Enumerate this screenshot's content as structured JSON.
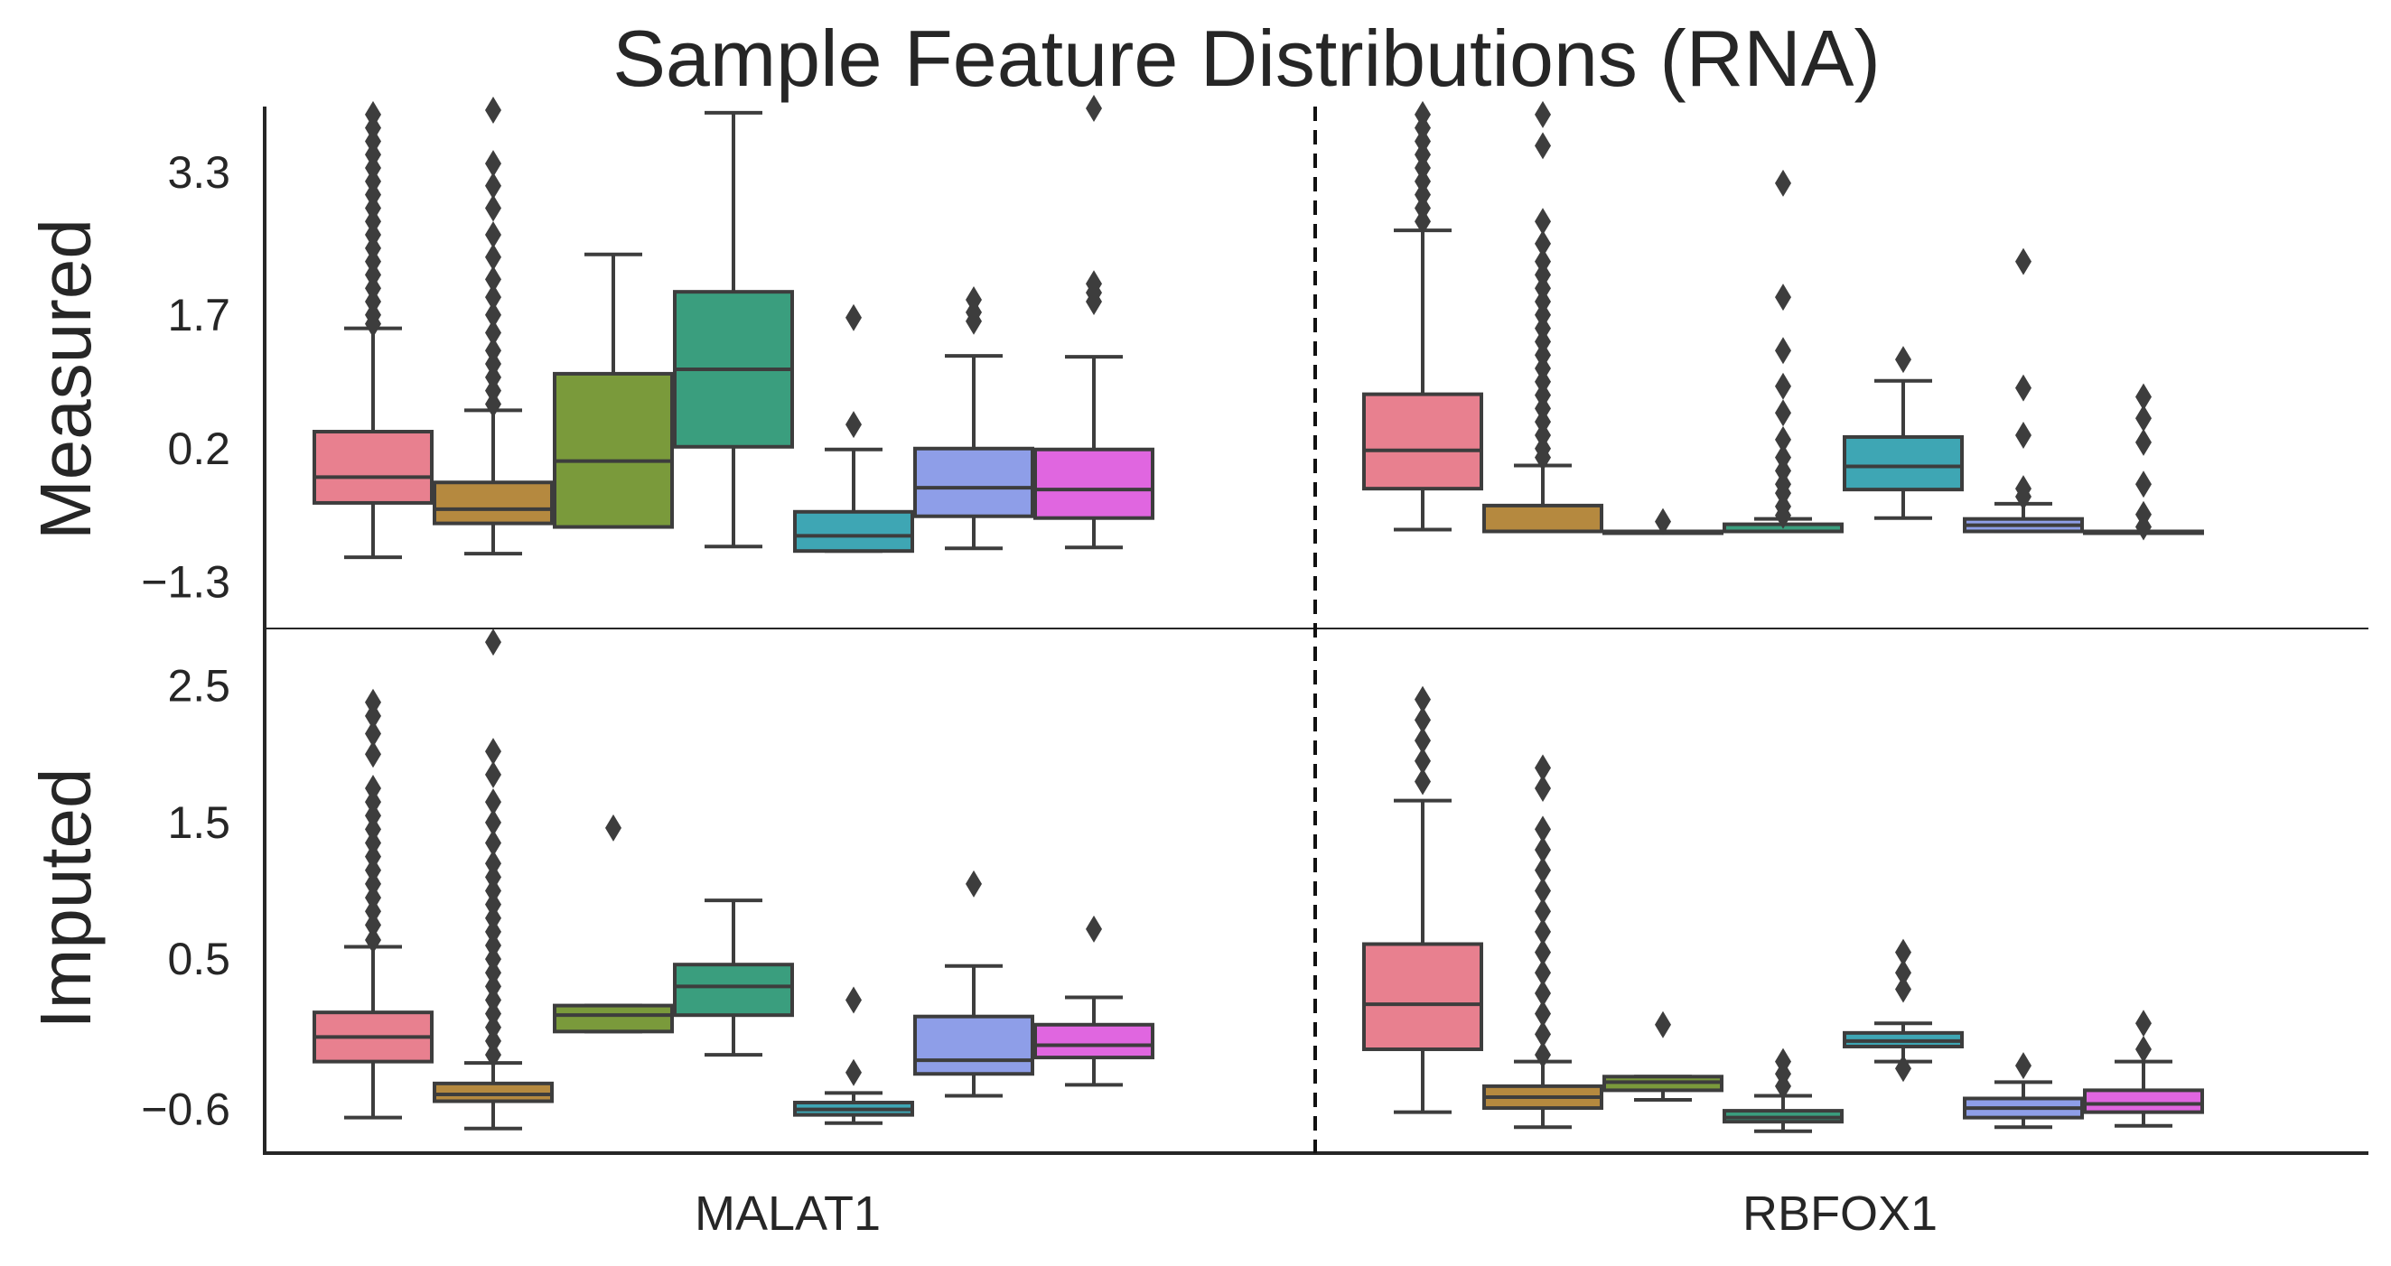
{
  "chart_data": {
    "type": "box",
    "title": "Sample Feature Distributions (RNA)",
    "row_labels": [
      "Measured",
      "Imputed"
    ],
    "categories": [
      "MALAT1",
      "RBFOX1"
    ],
    "palette": [
      "#e8808f",
      "#b5893f",
      "#7a9a3b",
      "#3a9e7e",
      "#3ea6b4",
      "#8e9ee8",
      "#e066e0"
    ],
    "line_color": "#3d3d3d",
    "grid": false,
    "legend": "none",
    "panels": [
      {
        "row": "Measured",
        "yticks": [
          3.3,
          1.7,
          0.2,
          -1.3
        ],
        "ylim": [
          -1.82,
          4.04
        ],
        "groups": [
          {
            "category": "MALAT1",
            "boxes": [
              {
                "q1": -0.41,
                "median": -0.12,
                "q3": 0.39,
                "whisker_low": -1.02,
                "whisker_high": 1.55,
                "outliers": [
                  1.6,
                  1.7,
                  1.85,
                  2.0,
                  2.15,
                  2.3,
                  2.45,
                  2.6,
                  2.75,
                  2.9,
                  3.05,
                  3.2,
                  3.35,
                  3.5,
                  3.65,
                  3.8,
                  3.95
                ]
              },
              {
                "q1": -0.64,
                "median": -0.48,
                "q3": -0.18,
                "whisker_low": -0.98,
                "whisker_high": 0.63,
                "outliers": [
                  0.7,
                  0.85,
                  1.0,
                  1.15,
                  1.3,
                  1.5,
                  1.7,
                  1.9,
                  2.1,
                  2.35,
                  2.6,
                  2.9,
                  3.15,
                  3.4,
                  4.0
                ]
              },
              {
                "q1": -0.68,
                "median": 0.06,
                "q3": 1.04,
                "whisker_low": -0.68,
                "whisker_high": 2.38,
                "outliers": []
              },
              {
                "q1": 0.22,
                "median": 1.09,
                "q3": 1.96,
                "whisker_low": -0.9,
                "whisker_high": 3.97,
                "outliers": []
              },
              {
                "q1": -0.95,
                "median": -0.78,
                "q3": -0.51,
                "whisker_low": -0.95,
                "whisker_high": 0.19,
                "outliers": [
                  0.47,
                  1.67
                ]
              },
              {
                "q1": -0.56,
                "median": -0.24,
                "q3": 0.2,
                "whisker_low": -0.92,
                "whisker_high": 1.24,
                "outliers": [
                  1.63,
                  1.73,
                  1.87
                ]
              },
              {
                "q1": -0.58,
                "median": -0.26,
                "q3": 0.19,
                "whisker_low": -0.91,
                "whisker_high": 1.23,
                "outliers": [
                  1.85,
                  1.95,
                  2.05,
                  4.02
                ]
              }
            ]
          },
          {
            "category": "RBFOX1",
            "boxes": [
              {
                "q1": -0.25,
                "median": 0.18,
                "q3": 0.81,
                "whisker_low": -0.71,
                "whisker_high": 2.65,
                "outliers": [
                  2.75,
                  2.9,
                  3.05,
                  3.2,
                  3.35,
                  3.5,
                  3.65,
                  3.8,
                  3.95
                ]
              },
              {
                "q1": -0.73,
                "median": -0.73,
                "q3": -0.44,
                "whisker_low": -0.73,
                "whisker_high": 0.01,
                "outliers": [
                  0.1,
                  0.2,
                  0.35,
                  0.5,
                  0.65,
                  0.8,
                  0.95,
                  1.1,
                  1.25,
                  1.4,
                  1.55,
                  1.7,
                  1.85,
                  2.0,
                  2.15,
                  2.3,
                  2.5,
                  2.75,
                  3.6,
                  3.95
                ]
              },
              {
                "q1": -0.73,
                "median": -0.73,
                "q3": -0.73,
                "whisker_low": -0.73,
                "whisker_high": -0.73,
                "outliers": [
                  -0.62
                ]
              },
              {
                "q1": -0.73,
                "median": -0.73,
                "q3": -0.65,
                "whisker_low": -0.73,
                "whisker_high": -0.59,
                "outliers": [
                  -0.55,
                  -0.45,
                  -0.3,
                  -0.2,
                  -0.05,
                  0.1,
                  0.3,
                  0.6,
                  0.9,
                  1.3,
                  1.9,
                  3.18
                ]
              },
              {
                "q1": -0.26,
                "median": 0.0,
                "q3": 0.33,
                "whisker_low": -0.58,
                "whisker_high": 0.96,
                "outliers": [
                  1.2
                ]
              },
              {
                "q1": -0.73,
                "median": -0.66,
                "q3": -0.59,
                "whisker_low": -0.73,
                "whisker_high": -0.42,
                "outliers": [
                  -0.34,
                  -0.25,
                  0.35,
                  0.88,
                  2.3
                ]
              },
              {
                "q1": -0.73,
                "median": -0.73,
                "q3": -0.73,
                "whisker_low": -0.73,
                "whisker_high": -0.73,
                "outliers": [
                  -0.68,
                  -0.54,
                  -0.2,
                  0.27,
                  0.54,
                  0.78
                ]
              }
            ]
          }
        ]
      },
      {
        "row": "Imputed",
        "yticks": [
          2.5,
          1.5,
          0.5,
          -0.6
        ],
        "ylim": [
          -0.92,
          2.92
        ],
        "groups": [
          {
            "category": "MALAT1",
            "boxes": [
              {
                "q1": -0.25,
                "median": -0.07,
                "q3": 0.11,
                "whisker_low": -0.66,
                "whisker_high": 0.59,
                "outliers": [
                  0.64,
                  0.75,
                  0.85,
                  0.95,
                  1.05,
                  1.15,
                  1.25,
                  1.35,
                  1.45,
                  1.55,
                  1.65,
                  1.75,
                  2.0,
                  2.15,
                  2.28,
                  2.38
                ]
              },
              {
                "q1": -0.54,
                "median": -0.49,
                "q3": -0.41,
                "whisker_low": -0.74,
                "whisker_high": -0.26,
                "outliers": [
                  -0.2,
                  -0.1,
                  0.0,
                  0.1,
                  0.2,
                  0.3,
                  0.4,
                  0.5,
                  0.6,
                  0.7,
                  0.8,
                  0.9,
                  1.0,
                  1.1,
                  1.2,
                  1.35,
                  1.5,
                  1.65,
                  1.85,
                  2.02,
                  2.82
                ]
              },
              {
                "q1": -0.03,
                "median": 0.09,
                "q3": 0.16,
                "whisker_low": -0.03,
                "whisker_high": 0.16,
                "outliers": [
                  1.46
                ]
              },
              {
                "q1": 0.09,
                "median": 0.3,
                "q3": 0.46,
                "whisker_low": -0.2,
                "whisker_high": 0.93,
                "outliers": []
              },
              {
                "q1": -0.64,
                "median": -0.6,
                "q3": -0.55,
                "whisker_low": -0.7,
                "whisker_high": -0.48,
                "outliers": [
                  -0.33,
                  0.2
                ]
              },
              {
                "q1": -0.34,
                "median": -0.24,
                "q3": 0.08,
                "whisker_low": -0.5,
                "whisker_high": 0.45,
                "outliers": [
                  1.05
                ]
              },
              {
                "q1": -0.22,
                "median": -0.13,
                "q3": 0.02,
                "whisker_low": -0.42,
                "whisker_high": 0.22,
                "outliers": [
                  0.72
                ]
              }
            ]
          },
          {
            "category": "RBFOX1",
            "boxes": [
              {
                "q1": -0.16,
                "median": 0.17,
                "q3": 0.61,
                "whisker_low": -0.62,
                "whisker_high": 1.66,
                "outliers": [
                  1.8,
                  1.95,
                  2.1,
                  2.25,
                  2.4
                ]
              },
              {
                "q1": -0.59,
                "median": -0.51,
                "q3": -0.43,
                "whisker_low": -0.73,
                "whisker_high": -0.25,
                "outliers": [
                  -0.2,
                  -0.05,
                  0.1,
                  0.25,
                  0.4,
                  0.55,
                  0.7,
                  0.85,
                  1.0,
                  1.15,
                  1.3,
                  1.45,
                  1.75,
                  1.9
                ]
              },
              {
                "q1": -0.46,
                "median": -0.4,
                "q3": -0.36,
                "whisker_low": -0.53,
                "whisker_high": -0.36,
                "outliers": [
                  0.02
                ]
              },
              {
                "q1": -0.69,
                "median": -0.66,
                "q3": -0.61,
                "whisker_low": -0.76,
                "whisker_high": -0.5,
                "outliers": [
                  -0.43,
                  -0.34,
                  -0.25
                ]
              },
              {
                "q1": -0.14,
                "median": -0.1,
                "q3": -0.04,
                "whisker_low": -0.25,
                "whisker_high": 0.03,
                "outliers": [
                  -0.3,
                  0.28,
                  0.4,
                  0.55
                ]
              },
              {
                "q1": -0.66,
                "median": -0.59,
                "q3": -0.52,
                "whisker_low": -0.73,
                "whisker_high": -0.4,
                "outliers": [
                  -0.28
                ]
              },
              {
                "q1": -0.62,
                "median": -0.56,
                "q3": -0.46,
                "whisker_low": -0.72,
                "whisker_high": -0.25,
                "outliers": [
                  -0.16,
                  0.03
                ]
              }
            ]
          }
        ]
      }
    ]
  }
}
